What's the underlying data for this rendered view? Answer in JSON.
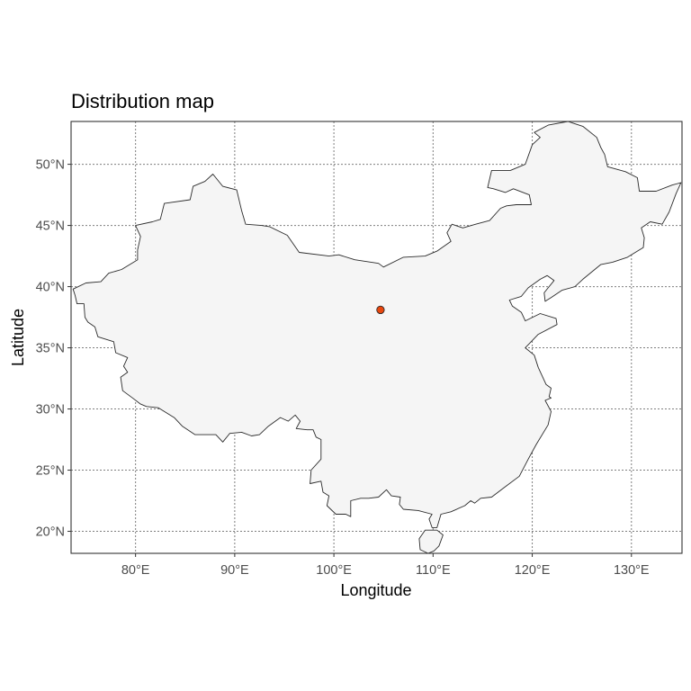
{
  "chart_data": {
    "type": "map",
    "title": "Distribution map",
    "xlabel": "Longitude",
    "ylabel": "Latitude",
    "xlim": [
      73.5,
      135.1
    ],
    "ylim": [
      18.2,
      53.5
    ],
    "x_ticks": [
      {
        "value": 80,
        "label": "80°E"
      },
      {
        "value": 90,
        "label": "90°E"
      },
      {
        "value": 100,
        "label": "100°E"
      },
      {
        "value": 110,
        "label": "110°E"
      },
      {
        "value": 120,
        "label": "120°E"
      },
      {
        "value": 130,
        "label": "130°E"
      }
    ],
    "y_ticks": [
      {
        "value": 20,
        "label": "20°N"
      },
      {
        "value": 25,
        "label": "25°N"
      },
      {
        "value": 30,
        "label": "30°N"
      },
      {
        "value": 35,
        "label": "35°N"
      },
      {
        "value": 40,
        "label": "40°N"
      },
      {
        "value": 45,
        "label": "45°N"
      },
      {
        "value": 50,
        "label": "50°N"
      }
    ],
    "grid": true,
    "country_fill": "#f5f5f5",
    "country_stroke": "#2b2b2b",
    "points": [
      {
        "lon": 104.7,
        "lat": 38.1,
        "color": "#e8470e"
      }
    ],
    "mainland_outline": [
      [
        73.7,
        39.8
      ],
      [
        75.0,
        40.3
      ],
      [
        76.5,
        40.4
      ],
      [
        77.3,
        41.1
      ],
      [
        78.6,
        41.4
      ],
      [
        80.2,
        42.2
      ],
      [
        80.2,
        43.0
      ],
      [
        80.5,
        44.1
      ],
      [
        80.0,
        45.0
      ],
      [
        81.7,
        45.3
      ],
      [
        82.5,
        45.5
      ],
      [
        82.9,
        46.8
      ],
      [
        85.5,
        47.1
      ],
      [
        85.8,
        48.2
      ],
      [
        87.0,
        48.6
      ],
      [
        87.8,
        49.2
      ],
      [
        88.8,
        48.2
      ],
      [
        90.2,
        47.9
      ],
      [
        90.7,
        46.2
      ],
      [
        91.1,
        45.1
      ],
      [
        92.7,
        45.0
      ],
      [
        93.5,
        44.9
      ],
      [
        95.3,
        44.2
      ],
      [
        96.5,
        42.8
      ],
      [
        99.5,
        42.5
      ],
      [
        100.5,
        42.6
      ],
      [
        102.1,
        42.2
      ],
      [
        104.5,
        41.9
      ],
      [
        105.0,
        41.6
      ],
      [
        107.0,
        42.4
      ],
      [
        109.2,
        42.5
      ],
      [
        110.4,
        42.9
      ],
      [
        111.8,
        43.7
      ],
      [
        111.4,
        44.4
      ],
      [
        111.9,
        45.1
      ],
      [
        113.0,
        44.8
      ],
      [
        114.3,
        45.1
      ],
      [
        115.7,
        45.4
      ],
      [
        116.8,
        46.4
      ],
      [
        117.4,
        46.6
      ],
      [
        118.4,
        46.7
      ],
      [
        119.9,
        46.7
      ],
      [
        119.7,
        47.5
      ],
      [
        118.1,
        48.0
      ],
      [
        117.3,
        47.7
      ],
      [
        116.1,
        48.0
      ],
      [
        115.5,
        48.1
      ],
      [
        115.9,
        49.5
      ],
      [
        117.8,
        49.5
      ],
      [
        119.3,
        50.0
      ],
      [
        120.0,
        51.6
      ],
      [
        120.8,
        52.2
      ],
      [
        120.2,
        52.6
      ],
      [
        121.6,
        53.2
      ],
      [
        123.6,
        53.5
      ],
      [
        125.1,
        53.1
      ],
      [
        126.5,
        52.2
      ],
      [
        126.9,
        51.4
      ],
      [
        127.3,
        50.8
      ],
      [
        127.6,
        49.8
      ],
      [
        129.4,
        49.4
      ],
      [
        130.6,
        48.9
      ],
      [
        130.8,
        47.8
      ],
      [
        132.5,
        47.8
      ],
      [
        134.1,
        48.3
      ],
      [
        135.0,
        48.5
      ],
      [
        134.5,
        47.6
      ],
      [
        133.8,
        46.1
      ],
      [
        133.1,
        45.1
      ],
      [
        131.9,
        45.3
      ],
      [
        131.0,
        44.8
      ],
      [
        131.3,
        44.0
      ],
      [
        131.2,
        43.2
      ],
      [
        130.6,
        42.9
      ],
      [
        129.6,
        42.4
      ],
      [
        128.1,
        42.0
      ],
      [
        126.9,
        41.8
      ],
      [
        125.1,
        40.6
      ],
      [
        124.3,
        40.0
      ],
      [
        123.0,
        39.7
      ],
      [
        121.9,
        39.1
      ],
      [
        121.3,
        38.8
      ],
      [
        121.2,
        39.5
      ],
      [
        121.6,
        39.9
      ],
      [
        122.2,
        40.5
      ],
      [
        121.5,
        40.9
      ],
      [
        120.8,
        40.6
      ],
      [
        119.6,
        39.9
      ],
      [
        118.9,
        39.2
      ],
      [
        117.7,
        38.9
      ],
      [
        118.0,
        38.4
      ],
      [
        118.9,
        37.9
      ],
      [
        119.3,
        37.2
      ],
      [
        120.8,
        37.8
      ],
      [
        122.4,
        37.4
      ],
      [
        122.5,
        36.9
      ],
      [
        120.6,
        36.1
      ],
      [
        119.3,
        35.0
      ],
      [
        120.2,
        34.4
      ],
      [
        120.6,
        33.4
      ],
      [
        121.4,
        32.0
      ],
      [
        121.9,
        31.7
      ],
      [
        121.7,
        31.0
      ],
      [
        121.9,
        30.9
      ],
      [
        121.3,
        30.7
      ],
      [
        121.9,
        29.8
      ],
      [
        121.6,
        28.7
      ],
      [
        120.4,
        27.1
      ],
      [
        119.6,
        25.9
      ],
      [
        118.7,
        24.5
      ],
      [
        117.2,
        23.6
      ],
      [
        115.9,
        22.8
      ],
      [
        114.8,
        22.7
      ],
      [
        114.2,
        22.3
      ],
      [
        113.8,
        22.5
      ],
      [
        113.2,
        22.1
      ],
      [
        111.8,
        21.6
      ],
      [
        110.8,
        21.4
      ],
      [
        110.4,
        20.3
      ],
      [
        109.9,
        20.3
      ],
      [
        109.6,
        21.0
      ],
      [
        109.9,
        21.4
      ],
      [
        108.5,
        21.7
      ],
      [
        107.0,
        21.8
      ],
      [
        106.6,
        22.2
      ],
      [
        106.7,
        22.8
      ],
      [
        105.8,
        22.9
      ],
      [
        105.3,
        23.4
      ],
      [
        104.5,
        22.8
      ],
      [
        103.5,
        22.7
      ],
      [
        102.7,
        22.7
      ],
      [
        101.7,
        22.5
      ],
      [
        101.7,
        21.2
      ],
      [
        101.2,
        21.4
      ],
      [
        100.2,
        21.4
      ],
      [
        99.3,
        22.1
      ],
      [
        99.5,
        22.9
      ],
      [
        98.9,
        23.2
      ],
      [
        98.7,
        24.1
      ],
      [
        97.6,
        23.9
      ],
      [
        97.7,
        25.0
      ],
      [
        98.7,
        25.9
      ],
      [
        98.7,
        27.5
      ],
      [
        98.2,
        27.7
      ],
      [
        97.9,
        28.3
      ],
      [
        97.3,
        28.3
      ],
      [
        96.2,
        28.4
      ],
      [
        96.6,
        29.0
      ],
      [
        96.1,
        29.5
      ],
      [
        95.4,
        29.0
      ],
      [
        94.6,
        29.3
      ],
      [
        93.4,
        28.6
      ],
      [
        92.5,
        27.9
      ],
      [
        91.7,
        27.8
      ],
      [
        90.7,
        28.1
      ],
      [
        89.5,
        28.0
      ],
      [
        88.8,
        27.3
      ],
      [
        88.1,
        27.9
      ],
      [
        86.0,
        27.9
      ],
      [
        84.7,
        28.6
      ],
      [
        83.9,
        29.3
      ],
      [
        82.3,
        30.1
      ],
      [
        81.1,
        30.2
      ],
      [
        80.5,
        30.4
      ],
      [
        79.7,
        30.9
      ],
      [
        78.7,
        31.5
      ],
      [
        78.5,
        32.6
      ],
      [
        79.2,
        33.0
      ],
      [
        78.8,
        33.5
      ],
      [
        79.2,
        34.2
      ],
      [
        78.0,
        34.6
      ],
      [
        77.8,
        35.5
      ],
      [
        76.2,
        35.9
      ],
      [
        75.9,
        36.7
      ],
      [
        75.2,
        37.1
      ],
      [
        74.9,
        37.5
      ],
      [
        74.8,
        38.6
      ],
      [
        74.1,
        38.6
      ],
      [
        73.9,
        39.3
      ],
      [
        73.7,
        39.8
      ]
    ],
    "hainan_outline": [
      [
        108.6,
        19.4
      ],
      [
        109.2,
        20.1
      ],
      [
        110.4,
        20.1
      ],
      [
        111.0,
        19.7
      ],
      [
        110.6,
        18.8
      ],
      [
        110.1,
        18.4
      ],
      [
        109.5,
        18.2
      ],
      [
        108.7,
        18.5
      ],
      [
        108.6,
        19.4
      ]
    ]
  }
}
